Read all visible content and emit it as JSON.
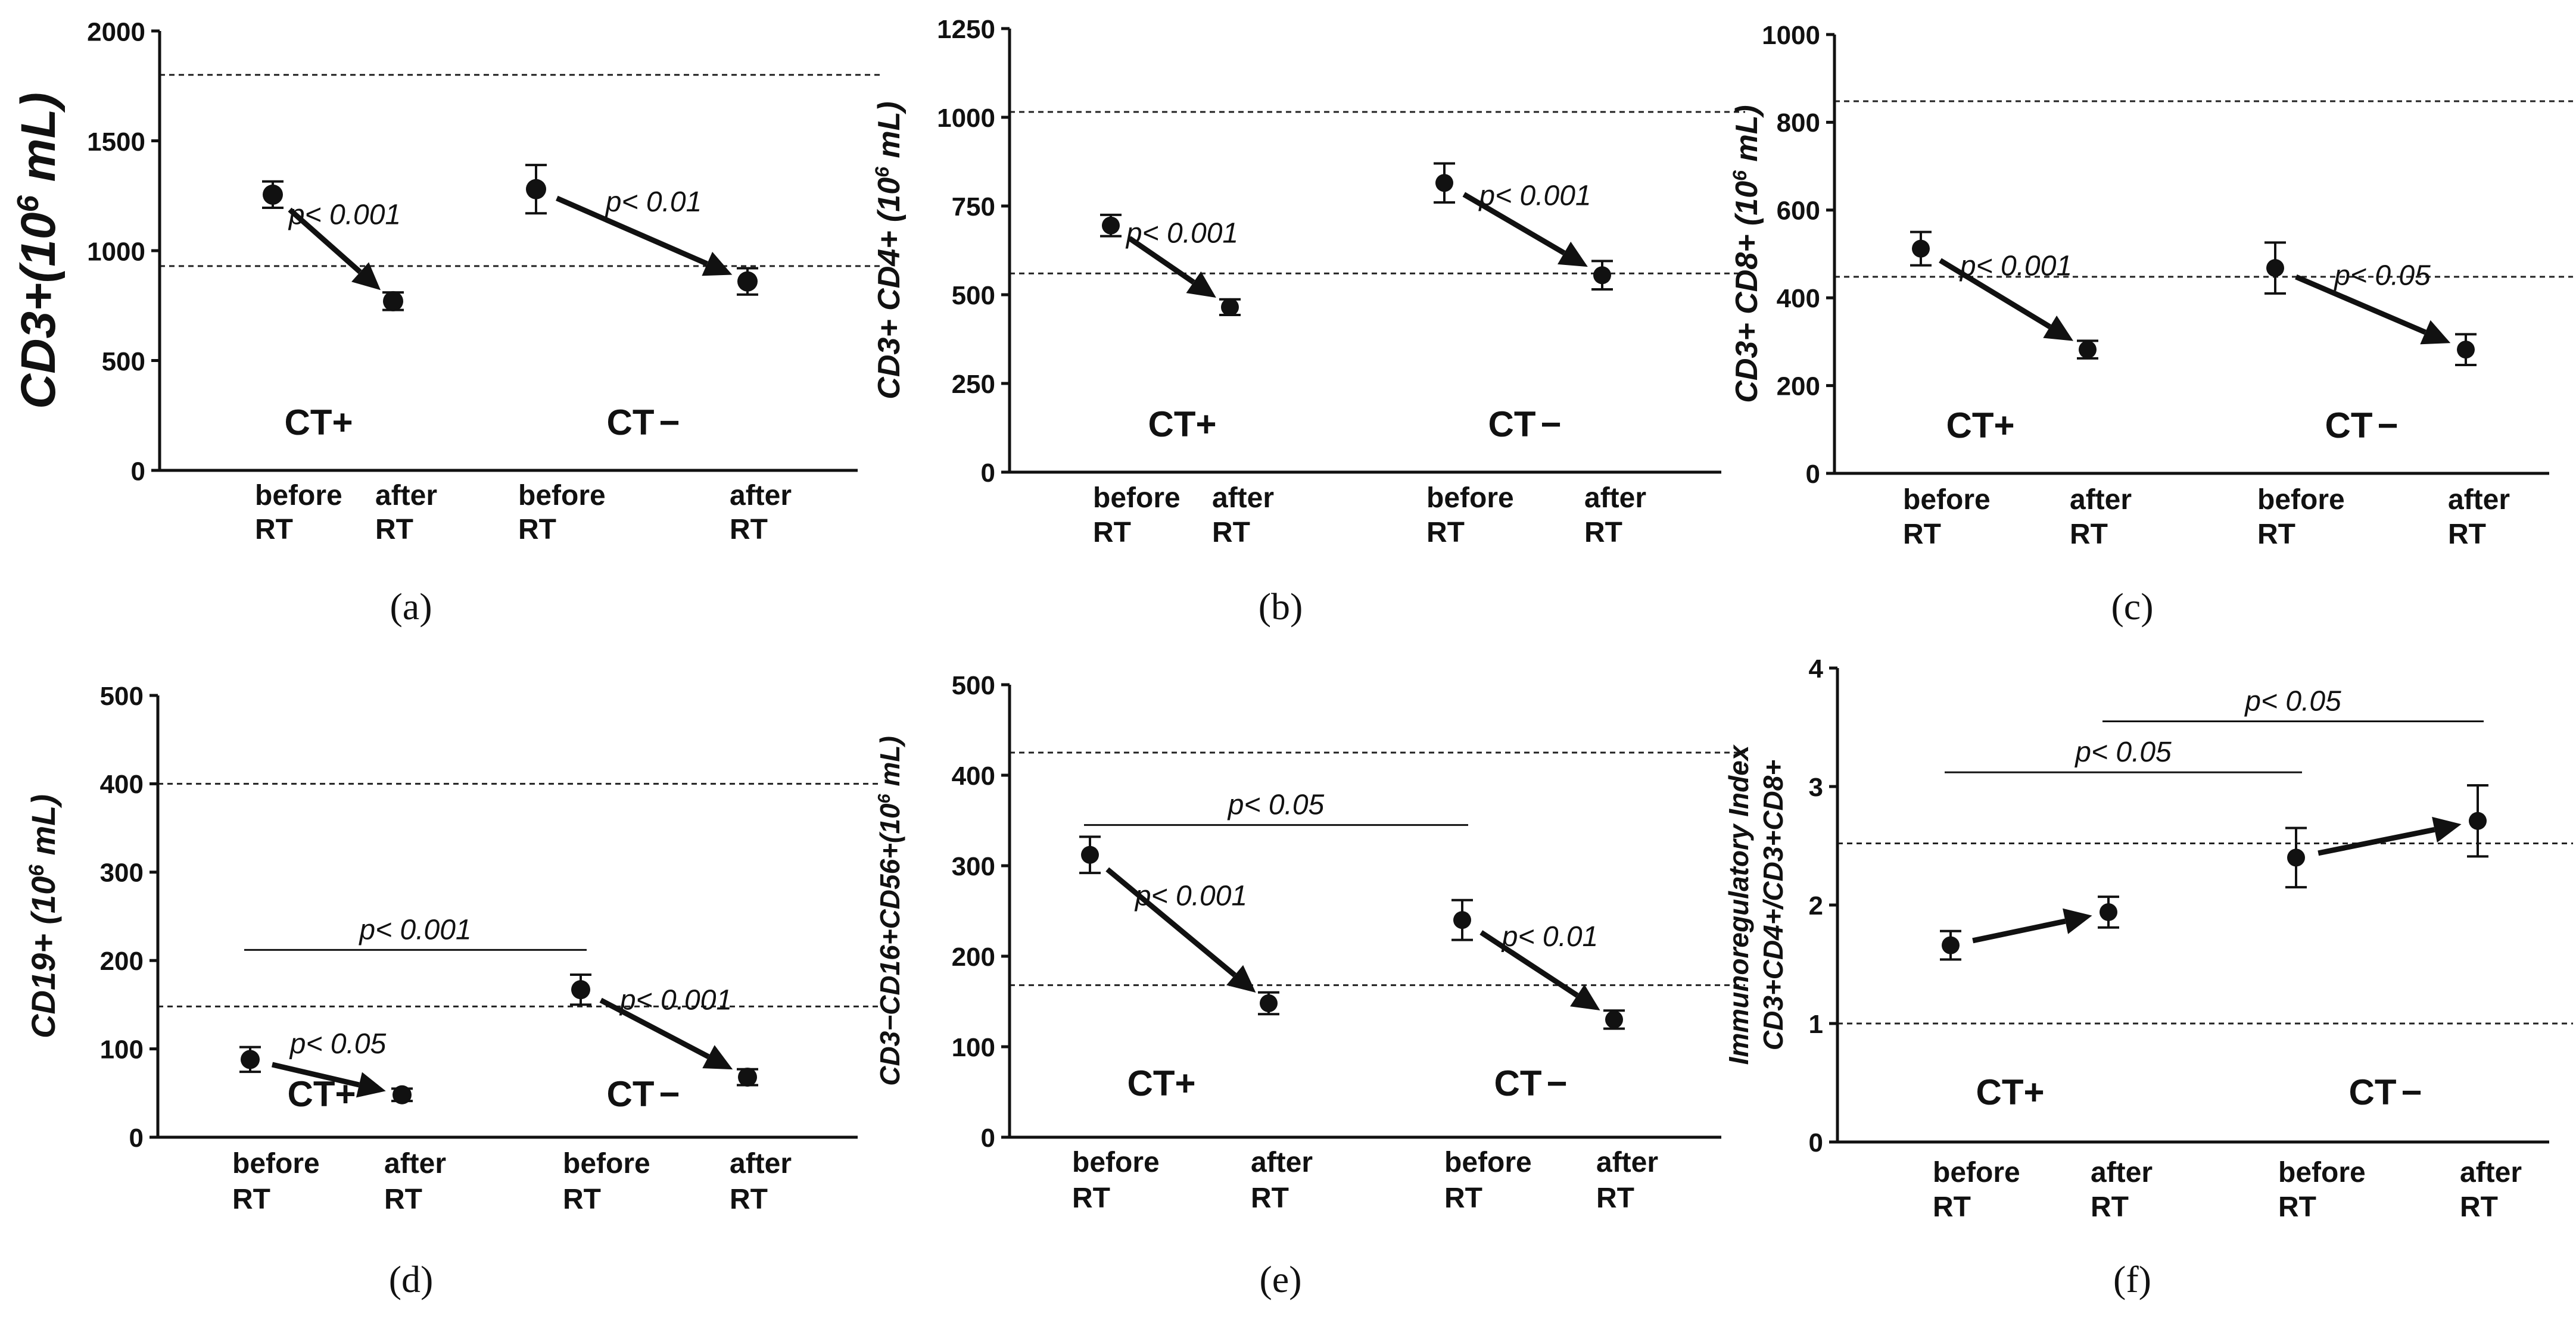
{
  "chart_data": [
    {
      "type": "scatter",
      "panel_label": "(a)",
      "ylabel": "CD3+(10",
      "ylabel_sup": "6",
      "ylabel_tail": " mL)",
      "ylim": [
        0,
        2000
      ],
      "yticks": [
        "0",
        "500",
        "1000",
        "1500",
        "2000"
      ],
      "ytick_values": [
        0,
        500,
        1000,
        1500,
        2000
      ],
      "reference_lines": [
        930,
        1800
      ],
      "categories": [
        {
          "line1": "before",
          "line2": "RT"
        },
        {
          "line1": "after",
          "line2": "RT"
        },
        {
          "line1": "before",
          "line2": "RT"
        },
        {
          "line1": "after",
          "line2": "RT"
        }
      ],
      "groups": [
        {
          "name": "CT+",
          "minus": false
        },
        {
          "name": "CT",
          "minus": true
        }
      ],
      "points": [
        {
          "cat": 0,
          "value": 1255,
          "err": 60
        },
        {
          "cat": 1,
          "value": 770,
          "err": 40
        },
        {
          "cat": 2,
          "value": 1280,
          "err": 110
        },
        {
          "cat": 3,
          "value": 860,
          "err": 60
        }
      ],
      "arrows": [
        {
          "from": 0,
          "to": 1,
          "label": "p< 0.001"
        },
        {
          "from": 2,
          "to": 3,
          "label": "p< 0.01"
        }
      ],
      "brackets": []
    },
    {
      "type": "scatter",
      "panel_label": "(b)",
      "ylabel": "CD3+ CD4+ (10",
      "ylabel_sup": "6",
      "ylabel_tail": " mL)",
      "ylim": [
        0,
        1250
      ],
      "yticks": [
        "0",
        "250",
        "500",
        "750",
        "1000",
        "1250"
      ],
      "ytick_values": [
        0,
        250,
        500,
        750,
        1000,
        1250
      ],
      "reference_lines": [
        560,
        1015
      ],
      "categories": [
        {
          "line1": "before",
          "line2": "RT"
        },
        {
          "line1": "after",
          "line2": "RT"
        },
        {
          "line1": "before",
          "line2": "RT"
        },
        {
          "line1": "after",
          "line2": "RT"
        }
      ],
      "groups": [
        {
          "name": "CT+",
          "minus": false
        },
        {
          "name": "CT",
          "minus": true
        }
      ],
      "points": [
        {
          "cat": 0,
          "value": 695,
          "err": 30
        },
        {
          "cat": 1,
          "value": 465,
          "err": 22
        },
        {
          "cat": 2,
          "value": 815,
          "err": 55
        },
        {
          "cat": 3,
          "value": 555,
          "err": 40
        }
      ],
      "arrows": [
        {
          "from": 0,
          "to": 1,
          "label": "p< 0.001"
        },
        {
          "from": 2,
          "to": 3,
          "label": "p< 0.001"
        }
      ],
      "brackets": []
    },
    {
      "type": "scatter",
      "panel_label": "(c)",
      "ylabel": "CD3+ CD8+ (10",
      "ylabel_sup": "6",
      "ylabel_tail": " mL)",
      "ylim": [
        0,
        1000
      ],
      "yticks": [
        "0",
        "200",
        "400",
        "600",
        "800",
        "1000"
      ],
      "ytick_values": [
        0,
        200,
        400,
        600,
        800,
        1000
      ],
      "reference_lines": [
        448,
        848
      ],
      "categories": [
        {
          "line1": "before",
          "line2": "RT"
        },
        {
          "line1": "after",
          "line2": "RT"
        },
        {
          "line1": "before",
          "line2": "RT"
        },
        {
          "line1": "after",
          "line2": "RT"
        }
      ],
      "groups": [
        {
          "name": "CT+",
          "minus": false
        },
        {
          "name": "CT",
          "minus": true
        }
      ],
      "points": [
        {
          "cat": 0,
          "value": 512,
          "err": 38
        },
        {
          "cat": 1,
          "value": 282,
          "err": 20
        },
        {
          "cat": 2,
          "value": 468,
          "err": 58
        },
        {
          "cat": 3,
          "value": 282,
          "err": 35
        }
      ],
      "arrows": [
        {
          "from": 0,
          "to": 1,
          "label": "p< 0.001"
        },
        {
          "from": 2,
          "to": 3,
          "label": "p< 0.05"
        }
      ],
      "brackets": []
    },
    {
      "type": "scatter",
      "panel_label": "(d)",
      "ylabel": "CD19+ (10",
      "ylabel_sup": "6",
      "ylabel_tail": " mL)",
      "ylim": [
        0,
        500
      ],
      "yticks": [
        "0",
        "100",
        "200",
        "300",
        "400",
        "500"
      ],
      "ytick_values": [
        0,
        100,
        200,
        300,
        400,
        500
      ],
      "reference_lines": [
        148,
        400
      ],
      "categories": [
        {
          "line1": "before",
          "line2": "RT"
        },
        {
          "line1": "after",
          "line2": "RT"
        },
        {
          "line1": "before",
          "line2": "RT"
        },
        {
          "line1": "after",
          "line2": "RT"
        }
      ],
      "groups": [
        {
          "name": "CT+",
          "minus": false
        },
        {
          "name": "CT",
          "minus": true
        }
      ],
      "points": [
        {
          "cat": 0,
          "value": 88,
          "err": 14
        },
        {
          "cat": 1,
          "value": 48,
          "err": 7
        },
        {
          "cat": 2,
          "value": 167,
          "err": 17
        },
        {
          "cat": 3,
          "value": 68,
          "err": 9
        }
      ],
      "arrows": [
        {
          "from": 0,
          "to": 1,
          "label": "p< 0.05"
        },
        {
          "from": 2,
          "to": 3,
          "label": "p< 0.001"
        }
      ],
      "brackets": [
        {
          "from": 0,
          "to": 2,
          "y": 212,
          "label": "p< 0.001"
        }
      ]
    },
    {
      "type": "scatter",
      "panel_label": "(e)",
      "ylabel": "CD3−CD16+CD56+(10",
      "ylabel_sup": "6",
      "ylabel_tail": " mL)",
      "ylim": [
        0,
        500
      ],
      "yticks": [
        "0",
        "100",
        "200",
        "300",
        "400",
        "500"
      ],
      "ytick_values": [
        0,
        100,
        200,
        300,
        400,
        500
      ],
      "reference_lines": [
        168,
        425
      ],
      "categories": [
        {
          "line1": "before",
          "line2": "RT"
        },
        {
          "line1": "after",
          "line2": "RT"
        },
        {
          "line1": "before",
          "line2": "RT"
        },
        {
          "line1": "after",
          "line2": "RT"
        }
      ],
      "groups": [
        {
          "name": "CT+",
          "minus": false
        },
        {
          "name": "CT",
          "minus": true
        }
      ],
      "points": [
        {
          "cat": 0,
          "value": 312,
          "err": 20
        },
        {
          "cat": 1,
          "value": 148,
          "err": 12
        },
        {
          "cat": 2,
          "value": 240,
          "err": 22
        },
        {
          "cat": 3,
          "value": 130,
          "err": 10
        }
      ],
      "arrows": [
        {
          "from": 0,
          "to": 1,
          "label": "p< 0.001"
        },
        {
          "from": 2,
          "to": 3,
          "label": "p< 0.01"
        }
      ],
      "brackets": [
        {
          "from": 0,
          "to": 2,
          "y": 345,
          "label": "p< 0.05"
        }
      ]
    },
    {
      "type": "scatter",
      "panel_label": "(f)",
      "ylabel": "Immunoregulatory Index",
      "ylabel2": "CD3+CD4+/CD3+CD8+",
      "ylim": [
        0,
        4
      ],
      "yticks": [
        "0",
        "1",
        "2",
        "3",
        "4"
      ],
      "ytick_values": [
        0,
        1,
        2,
        3,
        4
      ],
      "reference_lines": [
        1.0,
        2.52
      ],
      "categories": [
        {
          "line1": "before",
          "line2": "RT"
        },
        {
          "line1": "after",
          "line2": "RT"
        },
        {
          "line1": "before",
          "line2": "RT"
        },
        {
          "line1": "after",
          "line2": "RT"
        }
      ],
      "groups": [
        {
          "name": "CT+",
          "minus": false
        },
        {
          "name": "CT",
          "minus": true
        }
      ],
      "points": [
        {
          "cat": 0,
          "value": 1.66,
          "err": 0.12
        },
        {
          "cat": 1,
          "value": 1.94,
          "err": 0.13
        },
        {
          "cat": 2,
          "value": 2.4,
          "err": 0.25
        },
        {
          "cat": 3,
          "value": 2.71,
          "err": 0.3
        }
      ],
      "arrows": [
        {
          "from": 0,
          "to": 1,
          "label": ""
        },
        {
          "from": 2,
          "to": 3,
          "label": ""
        }
      ],
      "brackets": [
        {
          "from": 0,
          "to": 2,
          "y": 3.12,
          "label": "p< 0.05"
        },
        {
          "from": 1,
          "to": 3,
          "y": 3.55,
          "label": "p< 0.05"
        }
      ]
    }
  ]
}
